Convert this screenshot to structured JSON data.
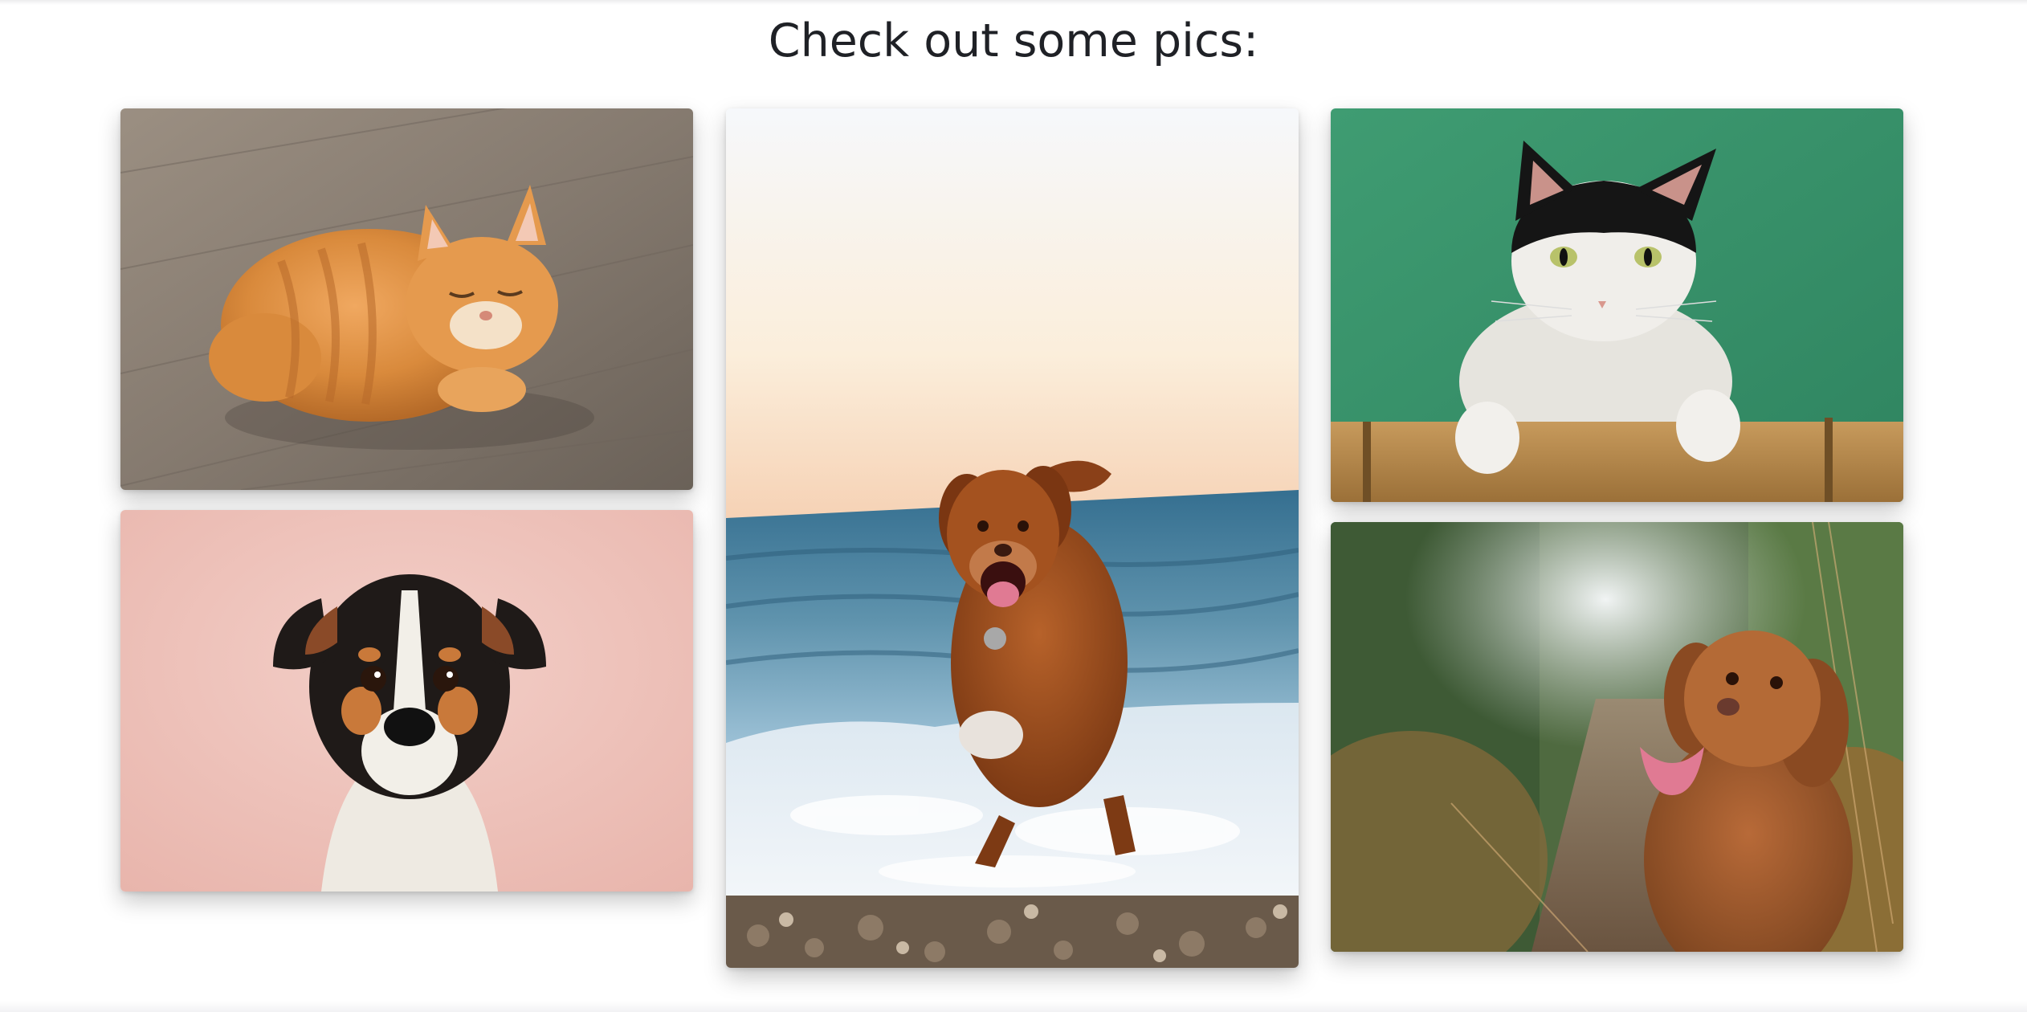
{
  "heading": "Check out some pics:",
  "gallery": {
    "images": [
      {
        "subject": "sleeping orange tabby cat on wooden floor"
      },
      {
        "subject": "black white and tan terrier puppy on pink background"
      },
      {
        "subject": "brown dog running on a beach at sunset"
      },
      {
        "subject": "black and white cat leaning on a bamboo rail against green wall"
      },
      {
        "subject": "brown dog with tongue out on a forest path"
      }
    ]
  }
}
